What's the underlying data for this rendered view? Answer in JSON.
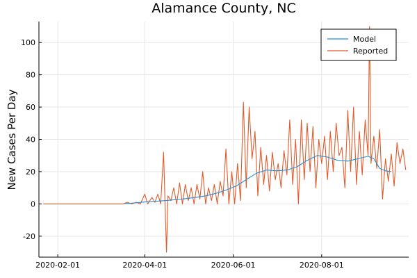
{
  "chart_data": {
    "type": "line",
    "title": "Alamance County, NC",
    "xlabel": "",
    "ylabel": "New Cases Per Day",
    "x_type": "date",
    "xlim": [
      "2020-01-19",
      "2020-09-30"
    ],
    "ylim": [
      -33,
      113
    ],
    "x_ticks": [
      "2020-02-01",
      "2020-04-01",
      "2020-06-01",
      "2020-08-01"
    ],
    "y_ticks": [
      -20,
      0,
      20,
      40,
      60,
      80,
      100
    ],
    "grid": true,
    "legend_position": "top-right",
    "colors": {
      "Model": "#1e90d8",
      "Reported": "#e05a2a"
    },
    "series": [
      {
        "name": "Model",
        "points": [
          [
            "2020-03-18",
            0.2
          ],
          [
            "2020-03-25",
            0.6
          ],
          [
            "2020-04-01",
            1.2
          ],
          [
            "2020-04-08",
            1.6
          ],
          [
            "2020-04-15",
            2.0
          ],
          [
            "2020-04-22",
            2.6
          ],
          [
            "2020-04-29",
            3.2
          ],
          [
            "2020-05-06",
            4.0
          ],
          [
            "2020-05-13",
            5.0
          ],
          [
            "2020-05-20",
            6.5
          ],
          [
            "2020-05-27",
            8.5
          ],
          [
            "2020-06-03",
            11
          ],
          [
            "2020-06-10",
            15
          ],
          [
            "2020-06-17",
            19
          ],
          [
            "2020-06-24",
            21
          ],
          [
            "2020-07-01",
            20.5
          ],
          [
            "2020-07-08",
            21
          ],
          [
            "2020-07-15",
            23
          ],
          [
            "2020-07-22",
            27
          ],
          [
            "2020-07-29",
            30
          ],
          [
            "2020-08-05",
            29
          ],
          [
            "2020-08-12",
            27
          ],
          [
            "2020-08-19",
            26.5
          ],
          [
            "2020-08-26",
            28
          ],
          [
            "2020-09-02",
            29.5
          ],
          [
            "2020-09-06",
            28
          ],
          [
            "2020-09-10",
            22
          ],
          [
            "2020-09-14",
            20.5
          ],
          [
            "2020-09-18",
            20
          ]
        ]
      },
      {
        "name": "Reported",
        "points": [
          [
            "2020-01-22",
            0
          ],
          [
            "2020-03-17",
            0
          ],
          [
            "2020-03-20",
            1
          ],
          [
            "2020-03-23",
            0
          ],
          [
            "2020-03-26",
            1
          ],
          [
            "2020-03-29",
            0
          ],
          [
            "2020-04-01",
            6
          ],
          [
            "2020-04-03",
            0
          ],
          [
            "2020-04-06",
            4
          ],
          [
            "2020-04-08",
            1
          ],
          [
            "2020-04-10",
            6
          ],
          [
            "2020-04-12",
            0
          ],
          [
            "2020-04-14",
            32
          ],
          [
            "2020-04-15",
            0
          ],
          [
            "2020-04-16",
            -30
          ],
          [
            "2020-04-17",
            5
          ],
          [
            "2020-04-19",
            2
          ],
          [
            "2020-04-21",
            10
          ],
          [
            "2020-04-23",
            0
          ],
          [
            "2020-04-25",
            13
          ],
          [
            "2020-04-27",
            0
          ],
          [
            "2020-04-29",
            12
          ],
          [
            "2020-05-01",
            2
          ],
          [
            "2020-05-03",
            10
          ],
          [
            "2020-05-05",
            0
          ],
          [
            "2020-05-07",
            12
          ],
          [
            "2020-05-09",
            3
          ],
          [
            "2020-05-11",
            20
          ],
          [
            "2020-05-13",
            0
          ],
          [
            "2020-05-15",
            10
          ],
          [
            "2020-05-17",
            2
          ],
          [
            "2020-05-19",
            12
          ],
          [
            "2020-05-21",
            0
          ],
          [
            "2020-05-23",
            14
          ],
          [
            "2020-05-25",
            5
          ],
          [
            "2020-05-27",
            34
          ],
          [
            "2020-05-29",
            0
          ],
          [
            "2020-05-31",
            20
          ],
          [
            "2020-06-02",
            0
          ],
          [
            "2020-06-04",
            25
          ],
          [
            "2020-06-06",
            2
          ],
          [
            "2020-06-08",
            63
          ],
          [
            "2020-06-10",
            10
          ],
          [
            "2020-06-12",
            60
          ],
          [
            "2020-06-14",
            28
          ],
          [
            "2020-06-16",
            45
          ],
          [
            "2020-06-18",
            5
          ],
          [
            "2020-06-20",
            35
          ],
          [
            "2020-06-22",
            12
          ],
          [
            "2020-06-24",
            30
          ],
          [
            "2020-06-26",
            8
          ],
          [
            "2020-06-28",
            32
          ],
          [
            "2020-06-30",
            15
          ],
          [
            "2020-07-02",
            25
          ],
          [
            "2020-07-04",
            10
          ],
          [
            "2020-07-06",
            33
          ],
          [
            "2020-07-08",
            18
          ],
          [
            "2020-07-10",
            52
          ],
          [
            "2020-07-12",
            12
          ],
          [
            "2020-07-14",
            40
          ],
          [
            "2020-07-16",
            0
          ],
          [
            "2020-07-18",
            52
          ],
          [
            "2020-07-20",
            15
          ],
          [
            "2020-07-22",
            50
          ],
          [
            "2020-07-24",
            20
          ],
          [
            "2020-07-26",
            48
          ],
          [
            "2020-07-28",
            10
          ],
          [
            "2020-07-30",
            40
          ],
          [
            "2020-08-01",
            25
          ],
          [
            "2020-08-03",
            42
          ],
          [
            "2020-08-05",
            15
          ],
          [
            "2020-08-07",
            45
          ],
          [
            "2020-08-09",
            20
          ],
          [
            "2020-08-11",
            50
          ],
          [
            "2020-08-13",
            30
          ],
          [
            "2020-08-15",
            35
          ],
          [
            "2020-08-17",
            10
          ],
          [
            "2020-08-19",
            58
          ],
          [
            "2020-08-21",
            20
          ],
          [
            "2020-08-23",
            60
          ],
          [
            "2020-08-25",
            12
          ],
          [
            "2020-08-27",
            45
          ],
          [
            "2020-08-29",
            18
          ],
          [
            "2020-08-31",
            52
          ],
          [
            "2020-09-02",
            30
          ],
          [
            "2020-09-03",
            110
          ],
          [
            "2020-09-04",
            25
          ],
          [
            "2020-09-06",
            42
          ],
          [
            "2020-09-08",
            22
          ],
          [
            "2020-09-10",
            46
          ],
          [
            "2020-09-12",
            3
          ],
          [
            "2020-09-14",
            28
          ],
          [
            "2020-09-16",
            14
          ],
          [
            "2020-09-18",
            31
          ],
          [
            "2020-09-20",
            11
          ],
          [
            "2020-09-22",
            38
          ],
          [
            "2020-09-24",
            25
          ],
          [
            "2020-09-26",
            34
          ],
          [
            "2020-09-28",
            21
          ]
        ]
      }
    ]
  }
}
